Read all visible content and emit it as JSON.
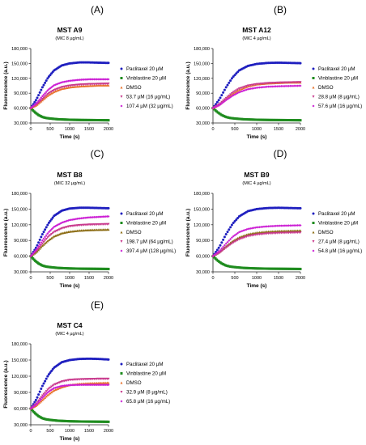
{
  "chart_data": [
    {
      "panel": "(A)",
      "type": "scatter",
      "title": "MST A9",
      "subtitle": "(MIC 8 µg/mL)",
      "xlabel": "Time (s)",
      "ylabel": "Fluorescence (a.u.)",
      "xlim": [
        0,
        2000
      ],
      "ylim": [
        30000,
        180000
      ],
      "x_ticks": [
        "0",
        "500",
        "1000",
        "1500",
        "2000"
      ],
      "y_ticks": [
        "30,000",
        "60,000",
        "90,000",
        "120,000",
        "150,000",
        "180,000"
      ],
      "legend_position": "right",
      "series": [
        {
          "name": "Paclitaxel 20 µM",
          "color": "#1f1fbf",
          "marker": "circle",
          "x": [
            0,
            150,
            300,
            450,
            600,
            800,
            1000,
            1250,
            1500,
            1750,
            2000
          ],
          "y": [
            60000,
            78000,
            102000,
            122000,
            136000,
            146000,
            150000,
            152000,
            152000,
            151500,
            151000
          ]
        },
        {
          "name": "Vinblastine 20 µM",
          "color": "#1f8c1f",
          "marker": "square",
          "x": [
            0,
            100,
            200,
            300,
            400,
            500,
            700,
            1000,
            1300,
            1600,
            2000
          ],
          "y": [
            60000,
            52000,
            46000,
            42000,
            40000,
            39000,
            37500,
            36500,
            36000,
            35800,
            35500
          ]
        },
        {
          "name": "DMSO",
          "color": "#e8712a",
          "marker": "triangle",
          "x": [
            0,
            150,
            300,
            450,
            600,
            800,
            1000,
            1250,
            1500,
            1750,
            2000
          ],
          "y": [
            60000,
            66000,
            76000,
            86000,
            93000,
            99000,
            102000,
            104000,
            105000,
            106000,
            106000
          ]
        },
        {
          "name": "53.7 µM (16 µg/mL)",
          "color": "#c8388c",
          "marker": "triangle-down",
          "x": [
            0,
            150,
            300,
            450,
            600,
            800,
            1000,
            1250,
            1500,
            1750,
            2000
          ],
          "y": [
            60000,
            67000,
            78000,
            89000,
            96000,
            102000,
            105000,
            107000,
            108000,
            108500,
            109000
          ]
        },
        {
          "name": "107.4 µM (32 µg/mL)",
          "color": "#cc1fd4",
          "marker": "diamond",
          "x": [
            0,
            150,
            300,
            450,
            600,
            800,
            1000,
            1250,
            1500,
            1750,
            2000
          ],
          "y": [
            60000,
            70000,
            84000,
            97000,
            106000,
            112000,
            115000,
            117000,
            118000,
            118000,
            118000
          ]
        }
      ]
    },
    {
      "panel": "(B)",
      "type": "scatter",
      "title": "MST A12",
      "subtitle": "(MIC 4 µg/mL)",
      "xlabel": "Time (s)",
      "ylabel": "Fluorescence (a.u.)",
      "xlim": [
        0,
        2000
      ],
      "ylim": [
        30000,
        180000
      ],
      "x_ticks": [
        "0",
        "500",
        "1000",
        "1500",
        "2000"
      ],
      "y_ticks": [
        "30,000",
        "60,000",
        "90,000",
        "120,000",
        "150,000",
        "180,000"
      ],
      "legend_position": "right",
      "series": [
        {
          "name": "Paclitaxel 20 µM",
          "color": "#1f1fbf",
          "marker": "circle",
          "x": [
            0,
            150,
            300,
            450,
            600,
            800,
            1000,
            1250,
            1500,
            1750,
            2000
          ],
          "y": [
            60000,
            78000,
            102000,
            122000,
            136000,
            145000,
            149000,
            151000,
            151500,
            151000,
            150500
          ]
        },
        {
          "name": "Vinblastine 20 µM",
          "color": "#1f8c1f",
          "marker": "square",
          "x": [
            0,
            100,
            200,
            300,
            400,
            500,
            700,
            1000,
            1300,
            1600,
            2000
          ],
          "y": [
            60000,
            52000,
            46000,
            42000,
            40000,
            39000,
            37500,
            36500,
            36000,
            35800,
            35500
          ]
        },
        {
          "name": "DMSO",
          "color": "#e8712a",
          "marker": "triangle",
          "x": [
            0,
            150,
            300,
            450,
            600,
            800,
            1000,
            1250,
            1500,
            1750,
            2000
          ],
          "y": [
            60000,
            67000,
            78000,
            89000,
            97000,
            104000,
            108000,
            110000,
            111000,
            112000,
            112000
          ]
        },
        {
          "name": "28.8 µM (8 µg/mL)",
          "color": "#c8388c",
          "marker": "triangle-down",
          "x": [
            0,
            150,
            300,
            450,
            600,
            800,
            1000,
            1250,
            1500,
            1750,
            2000
          ],
          "y": [
            60000,
            68000,
            80000,
            91000,
            99000,
            105000,
            108000,
            110000,
            111000,
            111500,
            112000
          ]
        },
        {
          "name": "57.6 µM (16 µg/mL)",
          "color": "#cc1fd4",
          "marker": "diamond",
          "x": [
            0,
            150,
            300,
            450,
            600,
            800,
            1000,
            1250,
            1500,
            1750,
            2000
          ],
          "y": [
            60000,
            66000,
            76000,
            85000,
            92000,
            98000,
            101000,
            103000,
            104000,
            104500,
            105000
          ]
        }
      ]
    },
    {
      "panel": "(C)",
      "type": "scatter",
      "title": "MST B8",
      "subtitle": "(MIC 32 µg/mL)",
      "xlabel": "Time (s)",
      "ylabel": "Fluorescence (a.u.)",
      "xlim": [
        0,
        2000
      ],
      "ylim": [
        30000,
        180000
      ],
      "x_ticks": [
        "0",
        "500",
        "1000",
        "1500",
        "2000"
      ],
      "y_ticks": [
        "30,000",
        "60,000",
        "90,000",
        "120,000",
        "150,000",
        "180,000"
      ],
      "legend_position": "right",
      "series": [
        {
          "name": "Paclitaxel 20 µM",
          "color": "#1f1fbf",
          "marker": "circle",
          "x": [
            0,
            150,
            300,
            450,
            600,
            800,
            1000,
            1250,
            1500,
            1750,
            2000
          ],
          "y": [
            60000,
            78000,
            102000,
            122000,
            137000,
            147000,
            151000,
            152500,
            152500,
            152000,
            151500
          ]
        },
        {
          "name": "Vinblastine 20 µM",
          "color": "#1f8c1f",
          "marker": "square",
          "x": [
            0,
            100,
            200,
            300,
            400,
            500,
            700,
            1000,
            1300,
            1600,
            2000
          ],
          "y": [
            60000,
            52000,
            46000,
            42000,
            40000,
            39000,
            37500,
            36500,
            36000,
            35800,
            35500
          ]
        },
        {
          "name": "DMSO",
          "color": "#8c6d14",
          "marker": "triangle",
          "x": [
            0,
            150,
            300,
            450,
            600,
            800,
            1000,
            1250,
            1500,
            1750,
            2000
          ],
          "y": [
            60000,
            68000,
            80000,
            90000,
            98000,
            104000,
            107000,
            109000,
            110000,
            110500,
            111000
          ]
        },
        {
          "name": "198.7 µM (64 µg/mL)",
          "color": "#c8388c",
          "marker": "triangle-down",
          "x": [
            0,
            150,
            300,
            450,
            600,
            800,
            1000,
            1250,
            1500,
            1750,
            2000
          ],
          "y": [
            60000,
            70000,
            84000,
            97000,
            106000,
            113000,
            117000,
            119000,
            120000,
            120500,
            121000
          ]
        },
        {
          "name": "397.4 µM (128 µg/mL)",
          "color": "#cc1fd4",
          "marker": "diamond",
          "x": [
            0,
            150,
            300,
            450,
            600,
            800,
            1000,
            1250,
            1500,
            1750,
            2000
          ],
          "y": [
            60000,
            73000,
            90000,
            105000,
            116000,
            124000,
            129000,
            132000,
            134000,
            135000,
            136000
          ]
        }
      ]
    },
    {
      "panel": "(D)",
      "type": "scatter",
      "title": "MST B9",
      "subtitle": "(MIC 4 µg/mL)",
      "xlabel": "Time (s)",
      "ylabel": "Fluorescence (a.u.)",
      "xlim": [
        0,
        2000
      ],
      "ylim": [
        30000,
        180000
      ],
      "x_ticks": [
        "0",
        "500",
        "1000",
        "1500",
        "2000"
      ],
      "y_ticks": [
        "30,000",
        "60,000",
        "90,000",
        "120,000",
        "150,000",
        "180,000"
      ],
      "legend_position": "right",
      "series": [
        {
          "name": "Paclitaxel 20 µM",
          "color": "#1f1fbf",
          "marker": "circle",
          "x": [
            0,
            150,
            300,
            450,
            600,
            800,
            1000,
            1250,
            1500,
            1750,
            2000
          ],
          "y": [
            60000,
            78000,
            102000,
            122000,
            136000,
            146000,
            150000,
            152000,
            152500,
            152000,
            151500
          ]
        },
        {
          "name": "Vinblastine 20 µM",
          "color": "#1f8c1f",
          "marker": "square",
          "x": [
            0,
            100,
            200,
            300,
            400,
            500,
            700,
            1000,
            1300,
            1600,
            2000
          ],
          "y": [
            60000,
            52000,
            46000,
            42000,
            40000,
            39000,
            37500,
            36500,
            36000,
            35800,
            35500
          ]
        },
        {
          "name": "DMSO",
          "color": "#8c6d14",
          "marker": "triangle",
          "x": [
            0,
            150,
            300,
            450,
            600,
            800,
            1000,
            1250,
            1500,
            1750,
            2000
          ],
          "y": [
            60000,
            68000,
            79000,
            89000,
            96000,
            102000,
            105000,
            107000,
            108000,
            108500,
            109000
          ]
        },
        {
          "name": "27.4 µM (8 µg/mL)",
          "color": "#c8388c",
          "marker": "triangle-down",
          "x": [
            0,
            150,
            300,
            450,
            600,
            800,
            1000,
            1250,
            1500,
            1750,
            2000
          ],
          "y": [
            60000,
            66000,
            76000,
            85000,
            92000,
            98000,
            101000,
            103000,
            104000,
            104500,
            105000
          ]
        },
        {
          "name": "54.8 µM (16 µg/mL)",
          "color": "#cc1fd4",
          "marker": "diamond",
          "x": [
            0,
            150,
            300,
            450,
            600,
            800,
            1000,
            1250,
            1500,
            1750,
            2000
          ],
          "y": [
            60000,
            70000,
            84000,
            97000,
            106000,
            112000,
            115000,
            117000,
            118000,
            118500,
            119000
          ]
        }
      ]
    },
    {
      "panel": "(E)",
      "type": "scatter",
      "title": "MST C4",
      "subtitle": "(MIC 4 µg/mL)",
      "xlabel": "Time (s)",
      "ylabel": "Fluorescence (a.u.)",
      "xlim": [
        0,
        2000
      ],
      "ylim": [
        30000,
        180000
      ],
      "x_ticks": [
        "0",
        "500",
        "1000",
        "1500",
        "2000"
      ],
      "y_ticks": [
        "30,000",
        "60,000",
        "90,000",
        "120,000",
        "150,000",
        "180,000"
      ],
      "legend_position": "right",
      "series": [
        {
          "name": "Paclitaxel 20 µM",
          "color": "#1f1fbf",
          "marker": "circle",
          "x": [
            0,
            150,
            300,
            450,
            600,
            800,
            1000,
            1250,
            1500,
            1750,
            2000
          ],
          "y": [
            60000,
            78000,
            102000,
            122000,
            136000,
            146000,
            150000,
            152000,
            152500,
            152000,
            151000
          ]
        },
        {
          "name": "Vinblastine 20 µM",
          "color": "#1f8c1f",
          "marker": "square",
          "x": [
            0,
            100,
            200,
            300,
            400,
            500,
            700,
            1000,
            1300,
            1600,
            2000
          ],
          "y": [
            60000,
            52000,
            46000,
            42000,
            40000,
            39000,
            37500,
            36500,
            36000,
            35800,
            35500
          ]
        },
        {
          "name": "DMSO",
          "color": "#e8712a",
          "marker": "triangle",
          "x": [
            0,
            150,
            300,
            450,
            600,
            800,
            1000,
            1250,
            1500,
            1750,
            2000
          ],
          "y": [
            60000,
            66000,
            76000,
            86000,
            94000,
            100000,
            104000,
            106000,
            107000,
            107500,
            108000
          ]
        },
        {
          "name": "32.9 µM (8 µg/mL)",
          "color": "#c8388c",
          "marker": "triangle-down",
          "x": [
            0,
            150,
            300,
            450,
            600,
            800,
            1000,
            1250,
            1500,
            1750,
            2000
          ],
          "y": [
            60000,
            70000,
            84000,
            96000,
            104000,
            110000,
            113000,
            114000,
            114500,
            115000,
            115000
          ]
        },
        {
          "name": "65.8 µM (16 µg/mL)",
          "color": "#cc1fd4",
          "marker": "diamond",
          "x": [
            0,
            150,
            300,
            450,
            600,
            800,
            1000,
            1250,
            1500,
            1750,
            2000
          ],
          "y": [
            60000,
            68000,
            80000,
            91000,
            98000,
            102000,
            103500,
            104000,
            104000,
            104000,
            104000
          ]
        }
      ]
    }
  ]
}
